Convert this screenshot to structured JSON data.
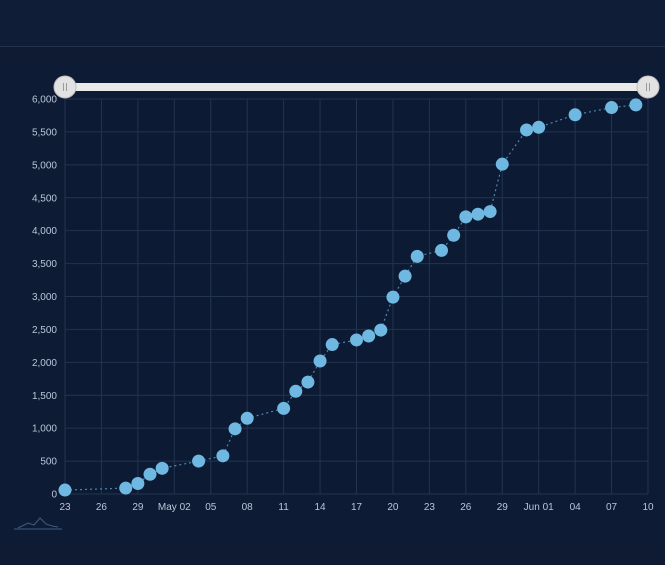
{
  "chart_data": {
    "type": "scatter",
    "title": "",
    "xlabel": "",
    "ylabel": "",
    "ylim": [
      0,
      6000
    ],
    "xlim": [
      "2020-04-23",
      "2020-06-10"
    ],
    "x_tick_labels": [
      "23",
      "26",
      "29",
      "May 02",
      "05",
      "08",
      "11",
      "14",
      "17",
      "20",
      "23",
      "26",
      "29",
      "Jun 01",
      "04",
      "07",
      "10"
    ],
    "y_tick_labels": [
      "0",
      "500",
      "1,000",
      "1,500",
      "2,000",
      "2,500",
      "3,000",
      "3,500",
      "4,000",
      "4,500",
      "5,000",
      "5,500",
      "6,000"
    ],
    "grid": true,
    "connector": "dotted-line",
    "range_selector": {
      "start": "2020-04-23",
      "end": "2020-06-10"
    },
    "colors": {
      "marker": "#6fb8e2",
      "connector": "#4f86b0",
      "grid": "#233450",
      "tick_label": "#b9c6d8",
      "plot_bg": "#0c1a33",
      "slider_track": "#e9e9e9",
      "slider_handle": "#e2e2e2"
    },
    "series": [
      {
        "points": [
          {
            "x": "2020-04-23",
            "y": 60
          },
          {
            "x": "2020-04-28",
            "y": 90
          },
          {
            "x": "2020-04-29",
            "y": 160
          },
          {
            "x": "2020-04-30",
            "y": 300
          },
          {
            "x": "2020-05-01",
            "y": 390
          },
          {
            "x": "2020-05-04",
            "y": 500
          },
          {
            "x": "2020-05-06",
            "y": 580
          },
          {
            "x": "2020-05-07",
            "y": 990
          },
          {
            "x": "2020-05-08",
            "y": 1150
          },
          {
            "x": "2020-05-11",
            "y": 1300
          },
          {
            "x": "2020-05-12",
            "y": 1560
          },
          {
            "x": "2020-05-13",
            "y": 1700
          },
          {
            "x": "2020-05-14",
            "y": 2020
          },
          {
            "x": "2020-05-15",
            "y": 2270
          },
          {
            "x": "2020-05-17",
            "y": 2340
          },
          {
            "x": "2020-05-18",
            "y": 2400
          },
          {
            "x": "2020-05-19",
            "y": 2490
          },
          {
            "x": "2020-05-20",
            "y": 2990
          },
          {
            "x": "2020-05-21",
            "y": 3310
          },
          {
            "x": "2020-05-22",
            "y": 3610
          },
          {
            "x": "2020-05-24",
            "y": 3700
          },
          {
            "x": "2020-05-25",
            "y": 3930
          },
          {
            "x": "2020-05-26",
            "y": 4210
          },
          {
            "x": "2020-05-27",
            "y": 4250
          },
          {
            "x": "2020-05-28",
            "y": 4290
          },
          {
            "x": "2020-05-29",
            "y": 5010
          },
          {
            "x": "2020-05-31",
            "y": 5530
          },
          {
            "x": "2020-06-01",
            "y": 5570
          },
          {
            "x": "2020-06-04",
            "y": 5760
          },
          {
            "x": "2020-06-07",
            "y": 5870
          },
          {
            "x": "2020-06-09",
            "y": 5910
          }
        ]
      }
    ]
  }
}
